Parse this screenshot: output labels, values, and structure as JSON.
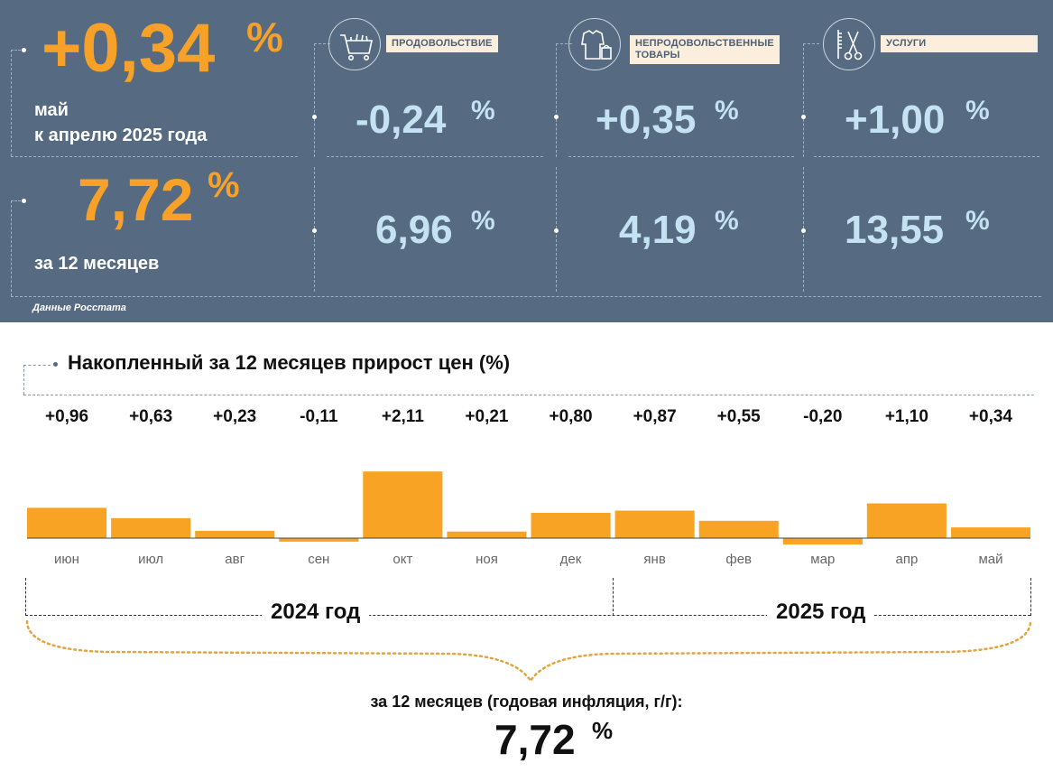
{
  "panel": {
    "monthly_change": "+0,34",
    "percent_sign": "%",
    "monthly_period_line1": "май",
    "monthly_period_line2": "к апрелю 2025 года",
    "annual_change": "7,72",
    "annual_period": "за 12 месяцев",
    "source": "Данные Росстата",
    "categories": [
      {
        "label": "ПРОДОВОЛЬСТВИЕ",
        "icon": "shopping-cart-icon",
        "monthly": "-0,24",
        "annual": "6,96"
      },
      {
        "label_line1": "НЕПРОДОВОЛЬСТВЕННЫЕ",
        "label_line2": "ТОВАРЫ",
        "icon": "clothes-bag-icon",
        "monthly": "+0,35",
        "annual": "4,19"
      },
      {
        "label": "УСЛУГИ",
        "icon": "scissors-comb-icon",
        "monthly": "+1,00",
        "annual": "13,55"
      }
    ]
  },
  "chart_data": {
    "type": "bar",
    "title": "Накопленный за 12 месяцев прирост цен (%)",
    "categories": [
      "июн",
      "июл",
      "авг",
      "сен",
      "окт",
      "ноя",
      "дек",
      "янв",
      "фев",
      "мар",
      "апр",
      "май"
    ],
    "values": [
      0.96,
      0.63,
      0.23,
      -0.11,
      2.11,
      0.21,
      0.8,
      0.87,
      0.55,
      -0.2,
      1.1,
      0.34
    ],
    "value_labels": [
      "+0,96",
      "+0,63",
      "+0,23",
      "-0,11",
      "+2,11",
      "+0,21",
      "+0,80",
      "+0,87",
      "+0,55",
      "-0,20",
      "+1,10",
      "+0,34"
    ],
    "groups": [
      {
        "label": "2024 год",
        "categories": [
          "июн",
          "июл",
          "авг",
          "сен",
          "окт",
          "ноя",
          "дек"
        ]
      },
      {
        "label": "2025 год",
        "categories": [
          "янв",
          "фев",
          "мар",
          "апр",
          "май"
        ]
      }
    ],
    "bar_color": "#f9a325",
    "grid": false
  },
  "footer": {
    "label": "за 12 месяцев (годовая инфляция, г/г):",
    "value": "7,72",
    "percent_sign": "%"
  },
  "colors": {
    "panel_bg": "#566b81",
    "accent_orange": "#f7a128",
    "light_blue": "#c5e2f2"
  }
}
